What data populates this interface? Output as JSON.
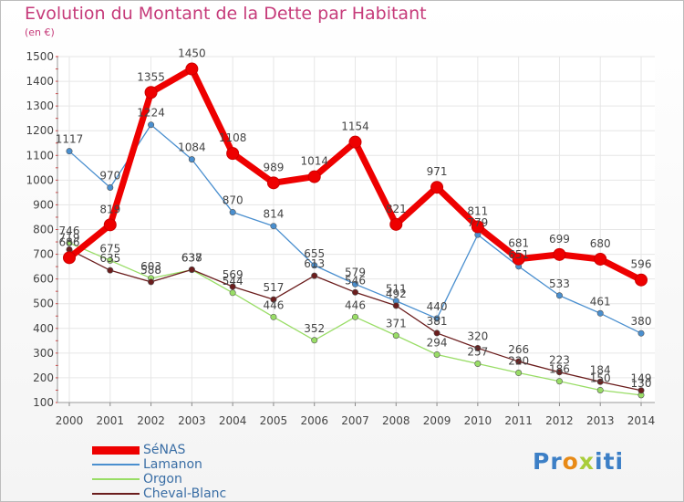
{
  "chart_data": {
    "type": "line",
    "title": "Evolution du Montant de la Dette par Habitant",
    "subtitle": "(en €)",
    "x": [
      2000,
      2001,
      2002,
      2003,
      2004,
      2005,
      2006,
      2007,
      2008,
      2009,
      2010,
      2011,
      2012,
      2013,
      2014
    ],
    "x_labels": [
      "2000",
      "2001",
      "2002",
      "2003",
      "2004",
      "2005",
      "2006",
      "2007",
      "2008",
      "2009",
      "2010",
      "2011",
      "2012",
      "2013",
      "2014"
    ],
    "ylim": [
      100,
      1500
    ],
    "y_ticks": [
      "100",
      "200",
      "300",
      "400",
      "500",
      "600",
      "700",
      "800",
      "900",
      "1000",
      "1100",
      "1200",
      "1300",
      "1400",
      "1500"
    ],
    "grid": true,
    "legend_position": "bottom-left",
    "series": [
      {
        "name": "SéNAS",
        "color": "#ee0000",
        "values": [
          686,
          819,
          1355,
          1450,
          1108,
          989,
          1014,
          1154,
          821,
          971,
          811,
          681,
          699,
          680,
          596
        ]
      },
      {
        "name": "Lamanon",
        "color": "#4a8fcf",
        "values": [
          1117,
          970,
          1224,
          1084,
          870,
          814,
          655,
          579,
          511,
          440,
          779,
          651,
          533,
          461,
          380
        ]
      },
      {
        "name": "Orgon",
        "color": "#99dd66",
        "values": [
          746,
          675,
          603,
          637,
          544,
          446,
          352,
          446,
          371,
          294,
          257,
          220,
          186,
          150,
          130
        ]
      },
      {
        "name": "Cheval-Blanc",
        "color": "#6b1d1d",
        "values": [
          719,
          635,
          588,
          638,
          569,
          517,
          613,
          546,
          492,
          381,
          320,
          266,
          223,
          184,
          149
        ]
      }
    ]
  },
  "logo": {
    "text": "Proxiti",
    "letters": [
      "P",
      "r",
      "o",
      "x",
      "i",
      "t",
      "i"
    ],
    "colors": [
      "#3c7fc6",
      "#3c7fc6",
      "#e88a16",
      "#a9cd3a",
      "#3c7fc6",
      "#3c7fc6",
      "#3c7fc6"
    ]
  }
}
